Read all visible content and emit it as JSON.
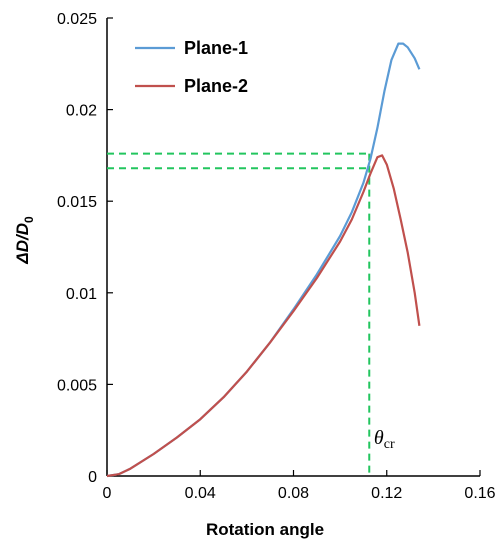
{
  "chart_data": {
    "type": "line",
    "title": "",
    "xlabel": "Rotation angle",
    "ylabel_main": "ΔD/D",
    "ylabel_sub": "0",
    "xlim": [
      0,
      0.16
    ],
    "ylim": [
      0,
      0.025
    ],
    "x_ticks": [
      "0",
      "0.04",
      "0.08",
      "0.12",
      "0.16"
    ],
    "x_tick_values": [
      0,
      0.04,
      0.08,
      0.12,
      0.16
    ],
    "y_ticks": [
      "0",
      "0.005",
      "0.01",
      "0.015",
      "0.02",
      "0.025"
    ],
    "y_tick_values": [
      0,
      0.005,
      0.01,
      0.015,
      0.02,
      0.025
    ],
    "grid": false,
    "legend_position": "top-left",
    "series": [
      {
        "name": "Plane-1",
        "color": "#5b9bd5",
        "points": [
          [
            0,
            0
          ],
          [
            0.005,
            0.0001
          ],
          [
            0.01,
            0.0004
          ],
          [
            0.02,
            0.0012
          ],
          [
            0.03,
            0.0021
          ],
          [
            0.04,
            0.0031
          ],
          [
            0.05,
            0.0043
          ],
          [
            0.06,
            0.0057
          ],
          [
            0.07,
            0.0073
          ],
          [
            0.08,
            0.0091
          ],
          [
            0.09,
            0.011
          ],
          [
            0.1,
            0.0131
          ],
          [
            0.105,
            0.0144
          ],
          [
            0.11,
            0.016
          ],
          [
            0.113,
            0.0173
          ],
          [
            0.116,
            0.019
          ],
          [
            0.119,
            0.021
          ],
          [
            0.122,
            0.0227
          ],
          [
            0.125,
            0.0236
          ],
          [
            0.127,
            0.0236
          ],
          [
            0.129,
            0.0234
          ],
          [
            0.132,
            0.0228
          ],
          [
            0.134,
            0.0222
          ]
        ]
      },
      {
        "name": "Plane-2",
        "color": "#c0504d",
        "points": [
          [
            0,
            0
          ],
          [
            0.005,
            0.0001
          ],
          [
            0.01,
            0.0004
          ],
          [
            0.02,
            0.0012
          ],
          [
            0.03,
            0.0021
          ],
          [
            0.04,
            0.0031
          ],
          [
            0.05,
            0.0043
          ],
          [
            0.06,
            0.0057
          ],
          [
            0.07,
            0.0073
          ],
          [
            0.08,
            0.009
          ],
          [
            0.09,
            0.0108
          ],
          [
            0.1,
            0.0128
          ],
          [
            0.105,
            0.014
          ],
          [
            0.11,
            0.0155
          ],
          [
            0.113,
            0.0165
          ],
          [
            0.116,
            0.0174
          ],
          [
            0.118,
            0.0175
          ],
          [
            0.12,
            0.017
          ],
          [
            0.123,
            0.0157
          ],
          [
            0.126,
            0.014
          ],
          [
            0.129,
            0.0122
          ],
          [
            0.132,
            0.01
          ],
          [
            0.134,
            0.0082
          ]
        ]
      }
    ],
    "reference_lines": {
      "color": "#22c55e",
      "horizontal_y": [
        0.0176,
        0.0168
      ],
      "vertical_x": 0.1125
    },
    "annotation": {
      "text": "θ",
      "subscript": "cr",
      "x": 0.1145,
      "y": 0.0013
    }
  }
}
